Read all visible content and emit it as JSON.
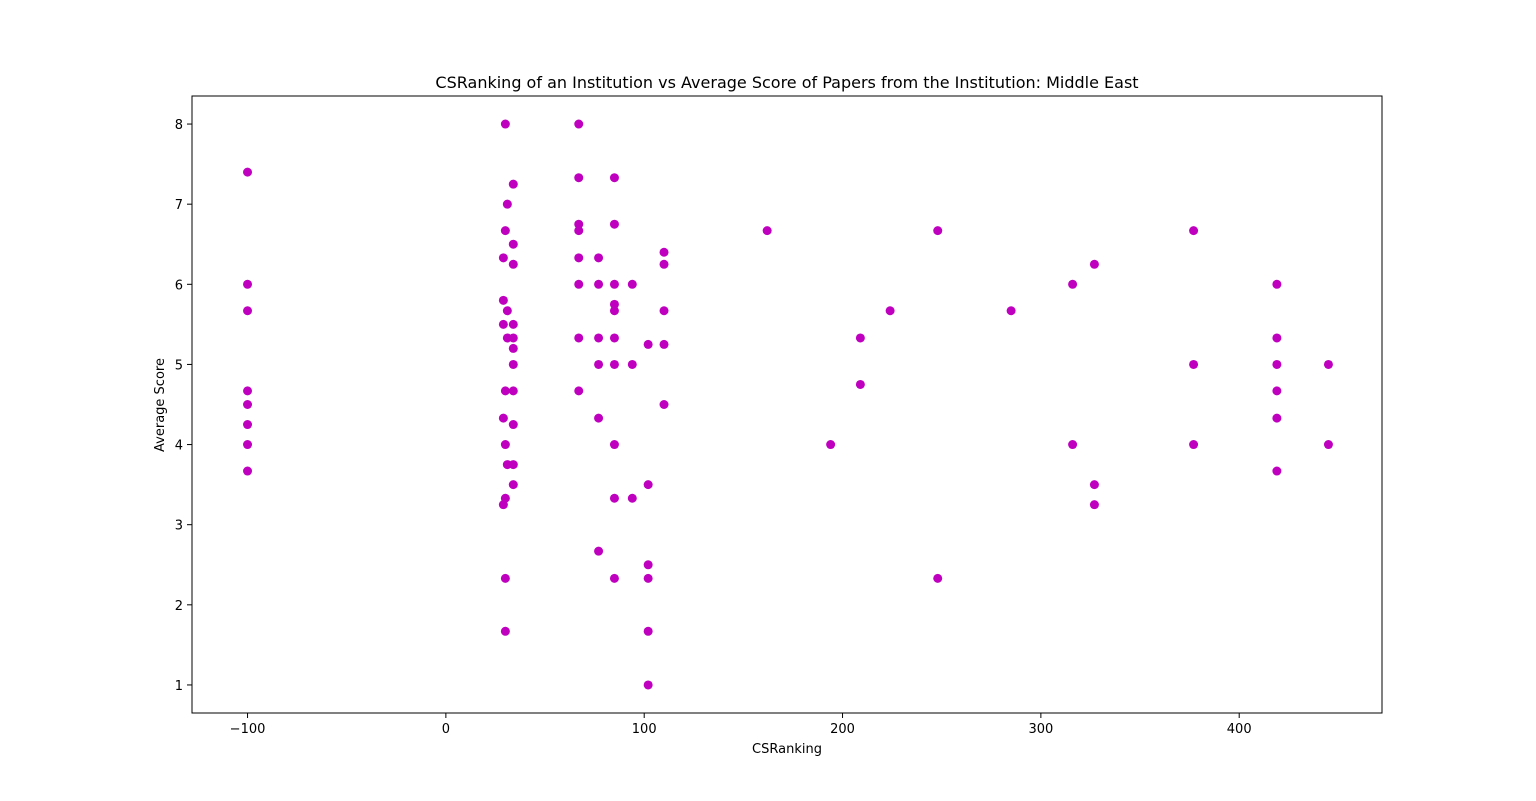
{
  "chart_data": {
    "type": "scatter",
    "title": "CSRanking of an Institution vs Average Score of Papers from the Institution: Middle East",
    "xlabel": "CSRanking",
    "ylabel": "Average Score",
    "xlim": [
      -128,
      472
    ],
    "ylim": [
      0.65,
      8.35
    ],
    "xticks": [
      -100,
      0,
      100,
      200,
      300,
      400
    ],
    "xtick_labels": [
      "−100",
      "0",
      "100",
      "200",
      "300",
      "400"
    ],
    "yticks": [
      1,
      2,
      3,
      4,
      5,
      6,
      7,
      8
    ],
    "ytick_labels": [
      "1",
      "2",
      "3",
      "4",
      "5",
      "6",
      "7",
      "8"
    ],
    "grid": false,
    "marker_color": "#bf00bf",
    "points": [
      [
        -100,
        7.4
      ],
      [
        -100,
        6.0
      ],
      [
        -100,
        5.67
      ],
      [
        -100,
        4.67
      ],
      [
        -100,
        4.5
      ],
      [
        -100,
        4.25
      ],
      [
        -100,
        4.0
      ],
      [
        -100,
        3.67
      ],
      [
        29,
        6.33
      ],
      [
        29,
        5.8
      ],
      [
        29,
        5.5
      ],
      [
        29,
        4.33
      ],
      [
        29,
        3.25
      ],
      [
        30,
        8.0
      ],
      [
        30,
        6.67
      ],
      [
        30,
        4.67
      ],
      [
        30,
        4.0
      ],
      [
        30,
        3.33
      ],
      [
        30,
        2.33
      ],
      [
        30,
        1.67
      ],
      [
        31,
        7.0
      ],
      [
        31,
        5.67
      ],
      [
        31,
        5.33
      ],
      [
        31,
        3.75
      ],
      [
        34,
        7.25
      ],
      [
        34,
        6.5
      ],
      [
        34,
        6.25
      ],
      [
        34,
        5.5
      ],
      [
        34,
        5.33
      ],
      [
        34,
        5.2
      ],
      [
        34,
        5.0
      ],
      [
        34,
        4.67
      ],
      [
        34,
        4.25
      ],
      [
        34,
        3.75
      ],
      [
        34,
        3.5
      ],
      [
        67,
        8.0
      ],
      [
        67,
        7.33
      ],
      [
        67,
        6.75
      ],
      [
        67,
        6.67
      ],
      [
        67,
        6.33
      ],
      [
        67,
        6.0
      ],
      [
        67,
        5.33
      ],
      [
        67,
        4.67
      ],
      [
        77,
        6.33
      ],
      [
        77,
        6.0
      ],
      [
        77,
        5.33
      ],
      [
        77,
        5.0
      ],
      [
        77,
        4.33
      ],
      [
        77,
        2.67
      ],
      [
        85,
        7.33
      ],
      [
        85,
        6.75
      ],
      [
        85,
        6.0
      ],
      [
        85,
        5.75
      ],
      [
        85,
        5.67
      ],
      [
        85,
        5.33
      ],
      [
        85,
        5.0
      ],
      [
        85,
        4.0
      ],
      [
        85,
        3.33
      ],
      [
        85,
        2.33
      ],
      [
        94,
        6.0
      ],
      [
        94,
        5.0
      ],
      [
        94,
        3.33
      ],
      [
        102,
        5.25
      ],
      [
        102,
        3.5
      ],
      [
        102,
        2.5
      ],
      [
        102,
        2.33
      ],
      [
        102,
        1.67
      ],
      [
        102,
        1.0
      ],
      [
        110,
        6.4
      ],
      [
        110,
        6.25
      ],
      [
        110,
        5.67
      ],
      [
        110,
        5.25
      ],
      [
        110,
        4.5
      ],
      [
        162,
        6.67
      ],
      [
        194,
        4.0
      ],
      [
        209,
        5.33
      ],
      [
        209,
        4.75
      ],
      [
        224,
        5.67
      ],
      [
        248,
        6.67
      ],
      [
        248,
        2.33
      ],
      [
        285,
        5.67
      ],
      [
        316,
        6.0
      ],
      [
        316,
        4.0
      ],
      [
        327,
        6.25
      ],
      [
        327,
        3.5
      ],
      [
        327,
        3.25
      ],
      [
        377,
        6.67
      ],
      [
        377,
        5.0
      ],
      [
        377,
        4.0
      ],
      [
        419,
        6.0
      ],
      [
        419,
        5.33
      ],
      [
        419,
        5.0
      ],
      [
        419,
        4.67
      ],
      [
        419,
        4.33
      ],
      [
        419,
        3.67
      ],
      [
        445,
        5.0
      ],
      [
        445,
        4.0
      ]
    ]
  }
}
